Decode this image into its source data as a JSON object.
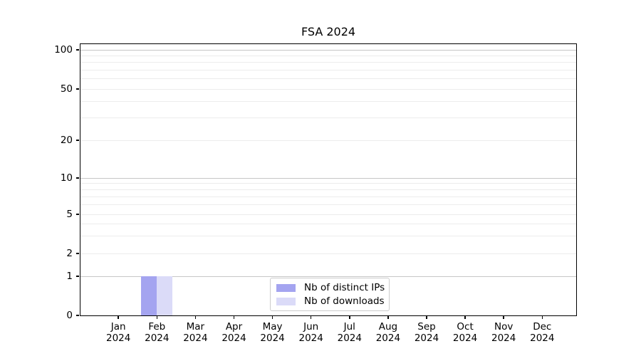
{
  "chart_data": {
    "type": "bar",
    "title": "FSA 2024",
    "categories": [
      "Jan",
      "Feb",
      "Mar",
      "Apr",
      "May",
      "Jun",
      "Jul",
      "Aug",
      "Sep",
      "Oct",
      "Nov",
      "Dec"
    ],
    "year": "2024",
    "series": [
      {
        "name": "Nb of distinct IPs",
        "color": "#a4a4f0",
        "values": [
          0,
          1,
          0,
          0,
          0,
          0,
          0,
          0,
          0,
          0,
          0,
          0
        ]
      },
      {
        "name": "Nb of downloads",
        "color": "#dbdbf8",
        "values": [
          0,
          1,
          0,
          0,
          0,
          0,
          0,
          0,
          0,
          0,
          0,
          0
        ]
      }
    ],
    "xlabel": "",
    "ylabel": "",
    "yticks": [
      0,
      1,
      2,
      5,
      10,
      20,
      50,
      100
    ],
    "ylim": [
      0,
      100
    ],
    "yscale": "symlog",
    "grid": "horizontal major and minor gridlines",
    "grid_major_color": "#c6c6c6",
    "grid_minor_color": "#ececec",
    "legend_position": "lower center inside plot"
  }
}
